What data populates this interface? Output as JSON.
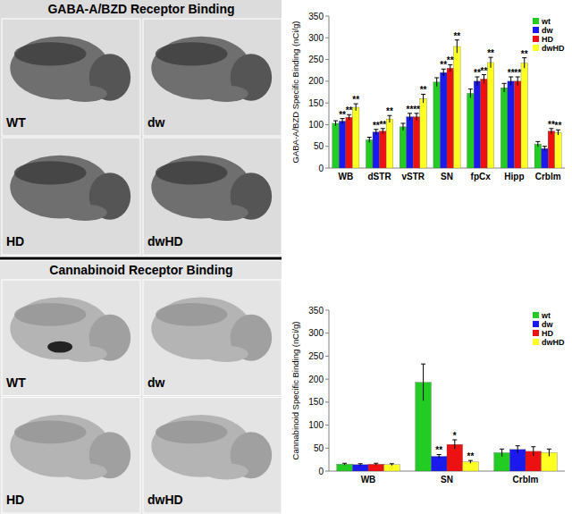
{
  "sections": [
    {
      "title": "GABA-A/BZD Receptor Binding",
      "panels": [
        "WT",
        "dw",
        "HD",
        "dwHD"
      ]
    },
    {
      "title": "Cannabinoid Receptor Binding",
      "panels": [
        "WT",
        "dw",
        "HD",
        "dwHD"
      ]
    }
  ],
  "chart_data": [
    {
      "type": "bar",
      "y_label": "GABA-A/BZD Specific Binding (nCi/g)",
      "categories": [
        "WB",
        "dSTR",
        "vSTR",
        "SN",
        "fpCx",
        "Hipp",
        "Crblm"
      ],
      "series": [
        {
          "name": "wt",
          "color": "#22cc22",
          "values": [
            103,
            65,
            95,
            198,
            172,
            185,
            55
          ],
          "errors": [
            6,
            6,
            8,
            10,
            10,
            10,
            6
          ],
          "significance": [
            null,
            null,
            null,
            null,
            null,
            null,
            null
          ]
        },
        {
          "name": "dw",
          "color": "#1a1aee",
          "values": [
            108,
            83,
            118,
            220,
            200,
            200,
            45
          ],
          "errors": [
            6,
            6,
            8,
            8,
            10,
            10,
            5
          ],
          "significance": [
            "**",
            "**",
            "**",
            "**",
            "**",
            "**",
            null
          ]
        },
        {
          "name": "HD",
          "color": "#ee1111",
          "values": [
            117,
            85,
            118,
            230,
            205,
            200,
            85
          ],
          "errors": [
            6,
            6,
            8,
            8,
            10,
            10,
            6
          ],
          "significance": [
            "**",
            "**",
            "**",
            "**",
            "**",
            "**",
            "**"
          ]
        },
        {
          "name": "dwHD",
          "color": "#ffff22",
          "values": [
            140,
            113,
            160,
            280,
            243,
            242,
            82
          ],
          "errors": [
            8,
            8,
            10,
            15,
            12,
            12,
            6
          ],
          "significance": [
            "**",
            "**",
            "**",
            "**",
            "**",
            "**",
            "**"
          ]
        }
      ],
      "ylim": [
        0,
        350
      ],
      "yticks": [
        0,
        50,
        100,
        150,
        200,
        250,
        300,
        350
      ],
      "legend": "upper right"
    },
    {
      "type": "bar",
      "y_label": "Cannabinoid Specific Binding (nCi/g)",
      "categories": [
        "WB",
        "SN",
        "Crblm"
      ],
      "series": [
        {
          "name": "wt",
          "color": "#22cc22",
          "values": [
            15,
            193,
            40
          ],
          "errors": [
            2,
            40,
            8
          ],
          "significance": [
            null,
            null,
            null
          ]
        },
        {
          "name": "dw",
          "color": "#1a1aee",
          "values": [
            14,
            32,
            47
          ],
          "errors": [
            2,
            4,
            8
          ],
          "significance": [
            null,
            "**",
            null
          ]
        },
        {
          "name": "HD",
          "color": "#ee1111",
          "values": [
            15,
            58,
            43
          ],
          "errors": [
            2,
            10,
            10
          ],
          "significance": [
            null,
            "*",
            null
          ]
        },
        {
          "name": "dwHD",
          "color": "#ffff22",
          "values": [
            14,
            20,
            40
          ],
          "errors": [
            2,
            3,
            8
          ],
          "significance": [
            null,
            "**",
            null
          ]
        }
      ],
      "ylim": [
        0,
        350
      ],
      "yticks": [
        0,
        50,
        100,
        150,
        200,
        250,
        300,
        350
      ],
      "legend": "upper right"
    }
  ]
}
